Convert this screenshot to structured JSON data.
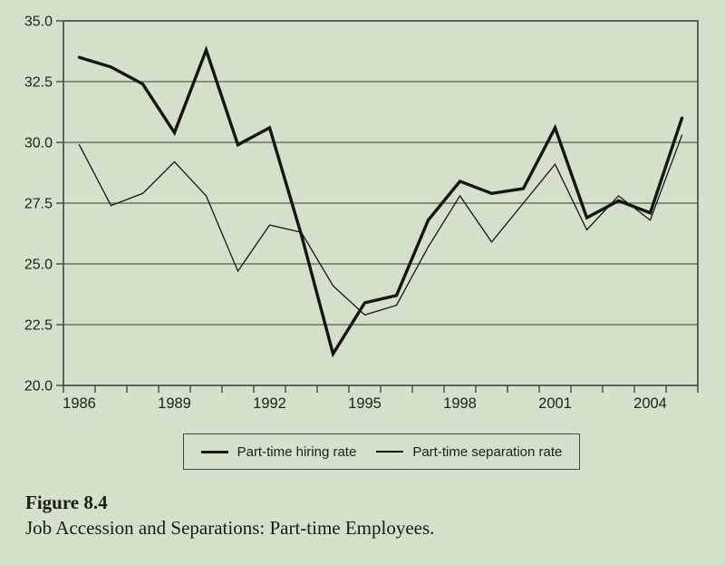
{
  "page": {
    "background_color": "#d4e0c9"
  },
  "chart_data": {
    "type": "line",
    "title": "",
    "x": [
      1986,
      1987,
      1988,
      1989,
      1990,
      1991,
      1992,
      1993,
      1994,
      1995,
      1996,
      1997,
      1998,
      1999,
      2000,
      2001,
      2002,
      2003,
      2004,
      2005
    ],
    "series": [
      {
        "name": "Part-time hiring rate",
        "style": "thick",
        "values": [
          33.5,
          33.1,
          32.4,
          30.4,
          33.8,
          29.9,
          30.6,
          26.2,
          21.3,
          23.4,
          23.7,
          26.8,
          28.4,
          27.9,
          28.1,
          30.6,
          26.9,
          27.6,
          27.1,
          31.0
        ]
      },
      {
        "name": "Part-time separation rate",
        "style": "thin",
        "values": [
          29.9,
          27.4,
          27.9,
          29.2,
          27.8,
          24.7,
          26.6,
          26.3,
          24.1,
          22.9,
          23.3,
          25.7,
          27.8,
          25.9,
          27.5,
          29.1,
          26.4,
          27.8,
          26.8,
          30.3
        ]
      }
    ],
    "ylim": [
      20.0,
      35.0
    ],
    "yticks": [
      20.0,
      22.5,
      25.0,
      27.5,
      30.0,
      32.5,
      35.0
    ],
    "ytick_labels": [
      "20.0",
      "22.5",
      "25.0",
      "27.5",
      "30.0",
      "32.5",
      "35.0"
    ],
    "xtick_label_years": [
      1986,
      1989,
      1992,
      1995,
      1998,
      2001,
      2004
    ],
    "grid": true,
    "legend_position": "bottom",
    "colors": {
      "line": "#151515",
      "grid": "#565d50",
      "frame": "#3f463a",
      "text": "#1e221b",
      "background": "#d4e0c9"
    }
  },
  "legend": {
    "items": [
      {
        "label": "Part-time hiring rate",
        "swatch": "thick-line"
      },
      {
        "label": "Part-time separation rate",
        "swatch": "thin-line"
      }
    ]
  },
  "caption": {
    "title": "Figure 8.4",
    "text": "Job Accession and Separations: Part-time Employees."
  }
}
